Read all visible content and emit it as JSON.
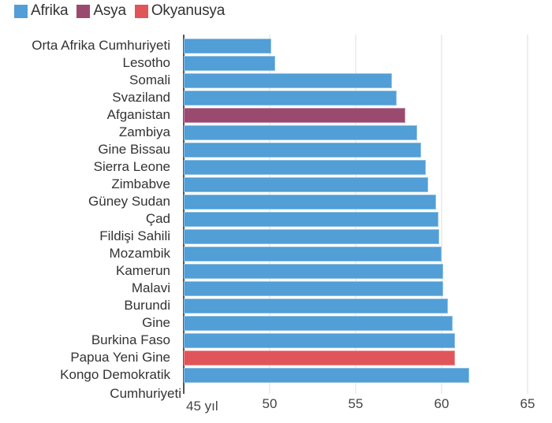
{
  "legend": [
    {
      "label": "Afrika",
      "color": "#529ED6"
    },
    {
      "label": "Asya",
      "color": "#9B4A6F"
    },
    {
      "label": "Okyanusya",
      "color": "#E05559"
    }
  ],
  "axis": {
    "ticks": [
      {
        "value": 45,
        "label": "45 yıl"
      },
      {
        "value": 50,
        "label": "50"
      },
      {
        "value": 55,
        "label": "55"
      },
      {
        "value": 60,
        "label": "60"
      },
      {
        "value": 65,
        "label": "65"
      }
    ]
  },
  "chart_data": {
    "type": "bar",
    "orientation": "horizontal",
    "title": "",
    "xlabel": "",
    "ylabel": "",
    "xlim": [
      45,
      65
    ],
    "unit": "yıl",
    "grid": true,
    "legend_position": "top-left",
    "legend": [
      "Afrika",
      "Asya",
      "Okyanusya"
    ],
    "categories": [
      "Orta Afrika Cumhuriyeti",
      "Lesotho",
      "Somali",
      "Svaziland",
      "Afganistan",
      "Zambiya",
      "Gine Bissau",
      "Sierra Leone",
      "Zimbabve",
      "Güney Sudan",
      "Çad",
      "Fildişi Sahili",
      "Mozambik",
      "Kamerun",
      "Malavi",
      "Burundi",
      "Gine",
      "Burkina Faso",
      "Papua Yeni Gine",
      "Kongo Demokratik Cumhuriyeti"
    ],
    "values": [
      50.1,
      50.3,
      57.1,
      57.4,
      57.9,
      58.6,
      58.8,
      59.1,
      59.2,
      59.7,
      59.8,
      59.85,
      60.0,
      60.1,
      60.1,
      60.35,
      60.65,
      60.8,
      60.8,
      61.6
    ],
    "regions": [
      "Afrika",
      "Afrika",
      "Afrika",
      "Afrika",
      "Asya",
      "Afrika",
      "Afrika",
      "Afrika",
      "Afrika",
      "Afrika",
      "Afrika",
      "Afrika",
      "Afrika",
      "Afrika",
      "Afrika",
      "Afrika",
      "Afrika",
      "Afrika",
      "Okyanusya",
      "Afrika"
    ],
    "xticks": [
      45,
      50,
      55,
      60,
      65
    ],
    "xtick_labels": [
      "45 yıl",
      "50",
      "55",
      "60",
      "65"
    ]
  },
  "rows": [
    {
      "label": "Orta Afrika Cumhuriyeti",
      "label_lines": [
        "Orta Afrika Cumhuriyeti"
      ],
      "value": 50.1,
      "region": "Afrika"
    },
    {
      "label": "Lesotho",
      "label_lines": [
        "Lesotho"
      ],
      "value": 50.3,
      "region": "Afrika"
    },
    {
      "label": "Somali",
      "label_lines": [
        "Somali"
      ],
      "value": 57.1,
      "region": "Afrika"
    },
    {
      "label": "Svaziland",
      "label_lines": [
        "Svaziland"
      ],
      "value": 57.4,
      "region": "Afrika"
    },
    {
      "label": "Afganistan",
      "label_lines": [
        "Afganistan"
      ],
      "value": 57.9,
      "region": "Asya"
    },
    {
      "label": "Zambiya",
      "label_lines": [
        "Zambiya"
      ],
      "value": 58.6,
      "region": "Afrika"
    },
    {
      "label": "Gine Bissau",
      "label_lines": [
        "Gine Bissau"
      ],
      "value": 58.8,
      "region": "Afrika"
    },
    {
      "label": "Sierra Leone",
      "label_lines": [
        "Sierra Leone"
      ],
      "value": 59.1,
      "region": "Afrika"
    },
    {
      "label": "Zimbabve",
      "label_lines": [
        "Zimbabve"
      ],
      "value": 59.2,
      "region": "Afrika"
    },
    {
      "label": "Güney Sudan",
      "label_lines": [
        "Güney Sudan"
      ],
      "value": 59.7,
      "region": "Afrika"
    },
    {
      "label": "Çad",
      "label_lines": [
        "Çad"
      ],
      "value": 59.8,
      "region": "Afrika"
    },
    {
      "label": "Fildişi Sahili",
      "label_lines": [
        "Fildişi Sahili"
      ],
      "value": 59.85,
      "region": "Afrika"
    },
    {
      "label": "Mozambik",
      "label_lines": [
        "Mozambik"
      ],
      "value": 60.0,
      "region": "Afrika"
    },
    {
      "label": "Kamerun",
      "label_lines": [
        "Kamerun"
      ],
      "value": 60.1,
      "region": "Afrika"
    },
    {
      "label": "Malavi",
      "label_lines": [
        "Malavi"
      ],
      "value": 60.1,
      "region": "Afrika"
    },
    {
      "label": "Burundi",
      "label_lines": [
        "Burundi"
      ],
      "value": 60.35,
      "region": "Afrika"
    },
    {
      "label": "Gine",
      "label_lines": [
        "Gine"
      ],
      "value": 60.65,
      "region": "Afrika"
    },
    {
      "label": "Burkina Faso",
      "label_lines": [
        "Burkina Faso"
      ],
      "value": 60.8,
      "region": "Afrika"
    },
    {
      "label": "Papua Yeni Gine",
      "label_lines": [
        "Papua Yeni Gine"
      ],
      "value": 60.8,
      "region": "Okyanusya"
    },
    {
      "label": "Kongo Demokratik Cumhuriyeti",
      "label_lines": [
        "Kongo Demokratik",
        "Cumhuriyeti"
      ],
      "value": 61.6,
      "region": "Afrika"
    }
  ],
  "colors": {
    "Afrika": "#529ED6",
    "Asya": "#9B4A6F",
    "Okyanusya": "#E05559",
    "gridline": "#eeeeee",
    "axis": "#555555"
  }
}
